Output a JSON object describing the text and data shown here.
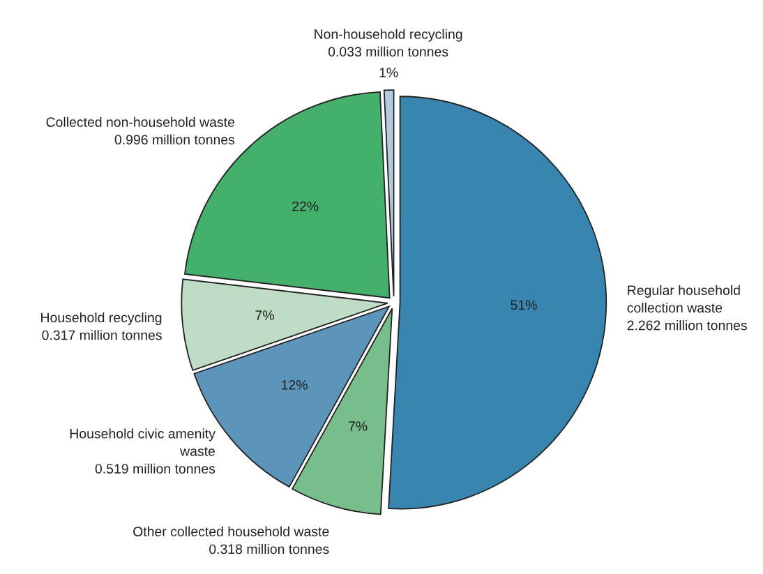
{
  "chart_data": {
    "type": "pie",
    "categories": [
      "Regular household\ncollection waste",
      "Other collected household waste",
      "Household civic amenity\nwaste",
      "Household recycling",
      "Collected non-household waste",
      "Non-household recycling"
    ],
    "values": [
      2.262,
      0.318,
      0.519,
      0.317,
      0.996,
      0.033
    ],
    "value_labels": [
      "2.262 million tonnes",
      "0.318 million tonnes",
      "0.519 million tonnes",
      "0.317 million tonnes",
      "0.996 million tonnes",
      "0.033 million tonnes"
    ],
    "colors": [
      "#3886b0",
      "#78be8c",
      "#5d95ba",
      "#bfdcc5",
      "#45b06c",
      "#b3cbe0"
    ],
    "annotations": [
      "51%",
      "7%",
      "12%",
      "7%",
      "22%",
      "1%"
    ],
    "legend": false
  }
}
